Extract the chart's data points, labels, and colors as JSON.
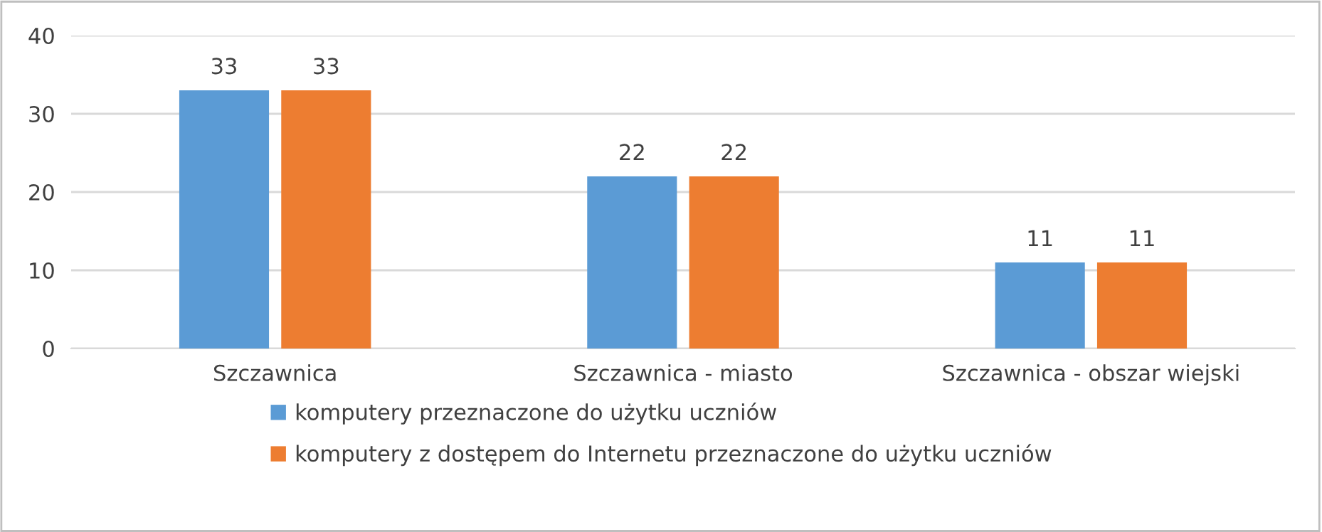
{
  "chart_data": {
    "type": "bar",
    "categories": [
      "Szczawnica",
      "Szczawnica - miasto",
      "Szczawnica - obszar wiejski"
    ],
    "series": [
      {
        "name": "komputery przeznaczone do użytku uczniów",
        "color": "#5b9bd5",
        "values": [
          33,
          22,
          11
        ]
      },
      {
        "name": "komputery z dostępem do Internetu przeznaczone do użytku uczniów",
        "color": "#ed7d31",
        "values": [
          33,
          22,
          11
        ]
      }
    ],
    "ylim": [
      0,
      40
    ],
    "yticks": [
      0,
      10,
      20,
      30,
      40
    ],
    "grid": "y",
    "legend": "bottom",
    "data_labels": true
  }
}
